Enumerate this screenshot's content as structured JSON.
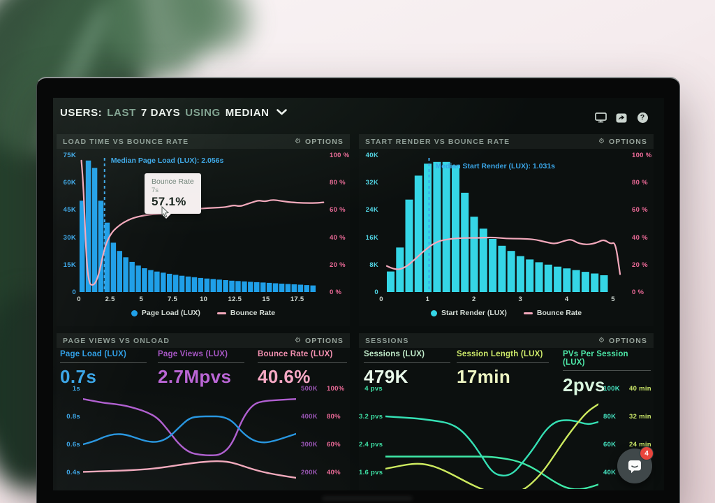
{
  "ui": {
    "options_label": "OPTIONS",
    "chat_badge": "4"
  },
  "header": {
    "segments": [
      {
        "text": "USERS:",
        "tone": "white"
      },
      {
        "text": "LAST",
        "tone": "green"
      },
      {
        "text": "7 DAYS",
        "tone": "white"
      },
      {
        "text": "USING",
        "tone": "green"
      },
      {
        "text": "MEDIAN",
        "tone": "white"
      }
    ],
    "icons": [
      "display-icon",
      "share-icon",
      "help-icon"
    ]
  },
  "chart_data": [
    {
      "id": "load-time-vs-bounce-rate",
      "type": "bar+line",
      "title": "LOAD TIME VS BOUNCE RATE",
      "x_range": [
        0,
        19.7
      ],
      "x_ticks": [
        {
          "label": "0",
          "v": 0
        },
        {
          "label": "2.5",
          "v": 2.5
        },
        {
          "label": "5",
          "v": 5
        },
        {
          "label": "7.5",
          "v": 7.5
        },
        {
          "label": "10",
          "v": 10
        },
        {
          "label": "12.5",
          "v": 12.5
        },
        {
          "label": "15",
          "v": 15
        },
        {
          "label": "17.5",
          "v": 17.5
        }
      ],
      "left_axis": {
        "labels": [
          "75K",
          "60K",
          "45K",
          "30K",
          "15K",
          "0"
        ],
        "range": [
          0,
          75
        ],
        "color": "#3aa6e8"
      },
      "right_axis": {
        "labels": [
          "100 %",
          "80 %",
          "60 %",
          "40 %",
          "20 %",
          "0 %"
        ],
        "range": [
          0,
          100
        ],
        "color": "#ee6b99"
      },
      "bars": {
        "name": "Page Load (LUX)",
        "color": "#1f9fe8",
        "x_start": 0.05,
        "x_step": 0.5,
        "bar_width": 0.42,
        "values": [
          50,
          72,
          68,
          50,
          38,
          27,
          22.5,
          19,
          16.5,
          14.5,
          13,
          12,
          11.2,
          10.6,
          10,
          9.4,
          8.9,
          8.5,
          8.1,
          7.7,
          7.4,
          7.1,
          6.8,
          6.5,
          6.2,
          6,
          5.8,
          5.6,
          5.4,
          5.2,
          5,
          4.8,
          4.6,
          4.4,
          4.2,
          4,
          3.8,
          3.6
        ]
      },
      "line": {
        "name": "Bounce Rate",
        "color": "#f4a9bc",
        "points": [
          [
            0.2,
            96
          ],
          [
            0.35,
            80
          ],
          [
            0.5,
            45
          ],
          [
            0.65,
            18
          ],
          [
            0.85,
            6
          ],
          [
            1.05,
            5
          ],
          [
            1.3,
            6
          ],
          [
            1.6,
            13
          ],
          [
            1.9,
            26
          ],
          [
            2.2,
            36
          ],
          [
            2.6,
            43
          ],
          [
            3.0,
            47
          ],
          [
            3.6,
            51
          ],
          [
            4.3,
            54
          ],
          [
            5.2,
            56
          ],
          [
            6.2,
            57
          ],
          [
            7.0,
            57.1
          ],
          [
            7.8,
            58.5
          ],
          [
            8.8,
            60
          ],
          [
            9.8,
            61
          ],
          [
            10.8,
            61.5
          ],
          [
            11.8,
            62
          ],
          [
            12.4,
            63.5
          ],
          [
            12.9,
            62.5
          ],
          [
            13.4,
            64
          ],
          [
            13.9,
            65.5
          ],
          [
            14.4,
            67
          ],
          [
            14.9,
            66
          ],
          [
            15.5,
            67.5
          ],
          [
            16.2,
            66.5
          ],
          [
            17.0,
            65.5
          ],
          [
            18.0,
            65
          ],
          [
            19.0,
            65
          ],
          [
            19.6,
            65.5
          ]
        ]
      },
      "median": {
        "label": "Median Page Load (LUX): 2.056s",
        "x": 2.056,
        "color": "#3aa6e8"
      },
      "tooltip": {
        "title": "Bounce Rate",
        "subtitle": "7s",
        "value": "57.1%"
      }
    },
    {
      "id": "start-render-vs-bounce-rate",
      "type": "bar+line",
      "title": "START RENDER VS BOUNCE RATE",
      "x_range": [
        0,
        5.3
      ],
      "x_ticks": [
        {
          "label": "0",
          "v": 0
        },
        {
          "label": "1",
          "v": 1
        },
        {
          "label": "2",
          "v": 2
        },
        {
          "label": "3",
          "v": 3
        },
        {
          "label": "4",
          "v": 4
        },
        {
          "label": "5",
          "v": 5
        }
      ],
      "left_axis": {
        "labels": [
          "40K",
          "32K",
          "24K",
          "16K",
          "8K",
          "0"
        ],
        "range": [
          0,
          40
        ],
        "color": "#52d6e6"
      },
      "right_axis": {
        "labels": [
          "100 %",
          "80 %",
          "60 %",
          "40 %",
          "20 %",
          "0 %"
        ],
        "range": [
          0,
          100
        ],
        "color": "#ee6b99"
      },
      "bars": {
        "name": "Start Render (LUX)",
        "color": "#35d6e6",
        "x_start": 0.12,
        "x_step": 0.2,
        "bar_width": 0.165,
        "values": [
          6,
          13,
          27,
          34,
          37.5,
          38,
          38,
          37,
          29,
          22,
          18.5,
          15.5,
          13.5,
          12,
          10.5,
          9.5,
          8.7,
          8,
          7.4,
          6.9,
          6.4,
          5.9,
          5.4,
          4.9
        ]
      },
      "line": {
        "name": "Bounce Rate",
        "color": "#f4a9bc",
        "points": [
          [
            0.12,
            19
          ],
          [
            0.3,
            16
          ],
          [
            0.5,
            17.5
          ],
          [
            0.7,
            23
          ],
          [
            0.95,
            31
          ],
          [
            1.2,
            37
          ],
          [
            1.5,
            39
          ],
          [
            1.8,
            39.5
          ],
          [
            2.1,
            39.5
          ],
          [
            2.4,
            40
          ],
          [
            2.7,
            39
          ],
          [
            3.0,
            39
          ],
          [
            3.3,
            38.5
          ],
          [
            3.55,
            36.5
          ],
          [
            3.75,
            35
          ],
          [
            3.95,
            37.5
          ],
          [
            4.1,
            38.5
          ],
          [
            4.25,
            35.5
          ],
          [
            4.45,
            34.5
          ],
          [
            4.65,
            36
          ],
          [
            4.8,
            38.5
          ],
          [
            4.95,
            35
          ],
          [
            5.05,
            36.5
          ],
          [
            5.15,
            13
          ]
        ]
      },
      "median": {
        "label": "Median Start Render (LUX): 1.031s",
        "x": 1.031,
        "color": "#3aa6e8"
      }
    },
    {
      "id": "page-views-vs-onload",
      "type": "line",
      "title": "PAGE VIEWS VS ONLOAD",
      "metrics": [
        {
          "label": "Page Load (LUX)",
          "value": "0.7s",
          "label_color": "#2f9fe6",
          "value_color": "#3aa6e8"
        },
        {
          "label": "Page Views (LUX)",
          "value": "2.7Mpvs",
          "label_color": "#a757c4",
          "value_color": "#bb66d6"
        },
        {
          "label": "Bounce Rate (LUX)",
          "value": "40.6%",
          "label_color": "#f290b0",
          "value_color": "#f6a8c4"
        }
      ],
      "left_axis": {
        "labels": [
          "1s",
          "0.8s",
          "0.6s",
          "0.4s"
        ],
        "grid_pos": [
          6,
          46,
          86,
          126
        ],
        "color": "#3aa6e8"
      },
      "right_axes": [
        {
          "labels": [
            "500K",
            "400K",
            "300K",
            "200K"
          ],
          "grid_pos": [
            6,
            46,
            86,
            126
          ],
          "color": "#9a55b5"
        },
        {
          "labels": [
            "100%",
            "80%",
            "60%",
            "40%"
          ],
          "grid_pos": [
            6,
            46,
            86,
            126
          ],
          "color": "#ee6b99"
        }
      ],
      "series": [
        {
          "name": "Page Views (LUX)",
          "color": "#b05fd0",
          "range": [
            140,
            515
          ],
          "values": [
            462,
            455,
            448,
            444,
            438,
            428,
            415,
            395,
            350,
            300,
            270,
            262,
            260,
            263,
            300,
            395,
            445,
            455,
            458,
            460,
            462
          ]
        },
        {
          "name": "Bounce Rate (LUX)",
          "color": "#f2a9bc",
          "range": [
            28,
            103
          ],
          "values": [
            40.3,
            40.5,
            40.8,
            41.0,
            41.3,
            41.7,
            42.2,
            43.0,
            44.0,
            45.2,
            46.3,
            47.2,
            47.8,
            48.0,
            47.0,
            44.5,
            42.0,
            40.0,
            38.5,
            37.2,
            36.0
          ]
        },
        {
          "name": "Page Load (LUX)",
          "color": "#2796e0",
          "range": [
            0.28,
            1.03
          ],
          "values": [
            0.6,
            0.62,
            0.655,
            0.675,
            0.67,
            0.645,
            0.62,
            0.615,
            0.645,
            0.72,
            0.79,
            0.8,
            0.8,
            0.8,
            0.77,
            0.68,
            0.625,
            0.61,
            0.625,
            0.65,
            0.675
          ]
        }
      ]
    },
    {
      "id": "sessions",
      "type": "line",
      "title": "SESSIONS",
      "metrics": [
        {
          "label": "Sessions (LUX)",
          "value": "479K",
          "label_color": "#bfe9c8",
          "value_color": "#e9f9ea"
        },
        {
          "label": "Session Length (LUX)",
          "value": "17min",
          "label_color": "#cde96a",
          "value_color": "#eef6c3"
        },
        {
          "label": "PVs Per Session (LUX)",
          "value": "2pvs",
          "label_color": "#4de8a8",
          "value_color": "#d9f7df"
        }
      ],
      "left_axis": {
        "labels": [
          "4 pvs",
          "3.2 pvs",
          "2.4 pvs",
          "1.6 pvs"
        ],
        "grid_pos": [
          6,
          46,
          86,
          126
        ],
        "color": "#3fe3a7"
      },
      "right_axes": [
        {
          "labels": [
            "100K",
            "80K",
            "60K",
            "40K"
          ],
          "grid_pos": [
            6,
            46,
            86,
            126
          ],
          "color": "#45e2c0"
        },
        {
          "labels": [
            "40 min",
            "32 min",
            "24 min"
          ],
          "grid_pos": [
            6,
            46,
            86
          ],
          "color": "#cde96a"
        }
      ],
      "series": [
        {
          "name": "PVs Per Session (LUX)",
          "color": "#3fe9a8",
          "range": [
            1.12,
            4.12
          ],
          "values": [
            2.05,
            2.05,
            2.05,
            2.05,
            2.05,
            2.05,
            2.05,
            2.05,
            2.05,
            2.05,
            2.04,
            2.0,
            1.95,
            1.85,
            1.7,
            1.5,
            1.3,
            1.15,
            1.1,
            1.15,
            1.25
          ]
        },
        {
          "name": "Sessions (LUX)",
          "color": "#35e0b4",
          "range": [
            28,
            103
          ],
          "values": [
            80,
            79.5,
            79,
            78.5,
            77.5,
            76.5,
            75,
            71,
            63,
            52,
            40,
            37,
            39,
            48,
            58,
            70,
            76.5,
            77.5,
            76.5,
            74,
            76
          ]
        },
        {
          "name": "Session Length (LUX)",
          "color": "#cdea5f",
          "range": [
            11.2,
            41.2
          ],
          "values": [
            17,
            17.6,
            18.2,
            18.5,
            18.2,
            17.2,
            15.8,
            14.2,
            12.6,
            11.2,
            10.2,
            9.8,
            10,
            11,
            13.5,
            17,
            21.5,
            26,
            30,
            33.5,
            35.5
          ]
        }
      ]
    }
  ]
}
